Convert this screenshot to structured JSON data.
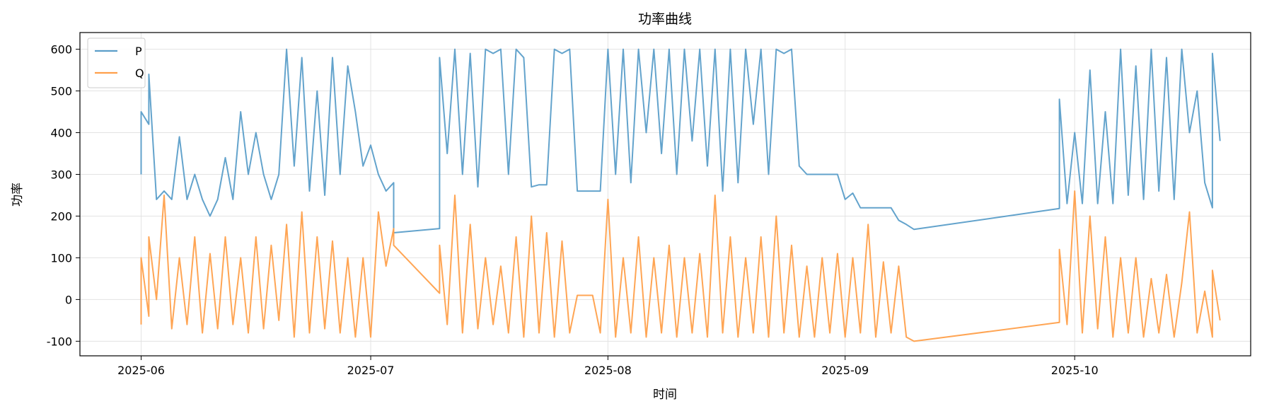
{
  "chart_data": {
    "type": "line",
    "title": "功率曲线",
    "xlabel": "时间",
    "ylabel": "功率",
    "xlim": [
      "2025-05-24",
      "2025-10-24"
    ],
    "ylim": [
      -135,
      640
    ],
    "x_ticks": [
      "2025-06",
      "2025-07",
      "2025-08",
      "2025-09",
      "2025-10"
    ],
    "y_ticks": [
      -100,
      0,
      100,
      200,
      300,
      400,
      500,
      600
    ],
    "grid": true,
    "legend_position": "top-left",
    "series": [
      {
        "name": "P",
        "color": "#5b9ec9",
        "points": [
          [
            "2025-06-01",
            300
          ],
          [
            "2025-06-01",
            450
          ],
          [
            "2025-06-02",
            420
          ],
          [
            "2025-06-02",
            540
          ],
          [
            "2025-06-03",
            240
          ],
          [
            "2025-06-04",
            260
          ],
          [
            "2025-06-05",
            240
          ],
          [
            "2025-06-06",
            390
          ],
          [
            "2025-06-07",
            240
          ],
          [
            "2025-06-08",
            300
          ],
          [
            "2025-06-09",
            240
          ],
          [
            "2025-06-10",
            200
          ],
          [
            "2025-06-11",
            240
          ],
          [
            "2025-06-12",
            340
          ],
          [
            "2025-06-13",
            240
          ],
          [
            "2025-06-14",
            450
          ],
          [
            "2025-06-15",
            300
          ],
          [
            "2025-06-16",
            400
          ],
          [
            "2025-06-17",
            300
          ],
          [
            "2025-06-18",
            240
          ],
          [
            "2025-06-19",
            300
          ],
          [
            "2025-06-20",
            600
          ],
          [
            "2025-06-21",
            320
          ],
          [
            "2025-06-22",
            580
          ],
          [
            "2025-06-23",
            260
          ],
          [
            "2025-06-24",
            500
          ],
          [
            "2025-06-25",
            250
          ],
          [
            "2025-06-26",
            580
          ],
          [
            "2025-06-27",
            300
          ],
          [
            "2025-06-28",
            560
          ],
          [
            "2025-06-29",
            450
          ],
          [
            "2025-06-30",
            320
          ],
          [
            "2025-07-01",
            370
          ],
          [
            "2025-07-02",
            300
          ],
          [
            "2025-07-03",
            260
          ],
          [
            "2025-07-04",
            280
          ],
          [
            "2025-07-04",
            160
          ],
          [
            "2025-07-10",
            170
          ],
          [
            "2025-07-10",
            580
          ],
          [
            "2025-07-11",
            350
          ],
          [
            "2025-07-12",
            600
          ],
          [
            "2025-07-13",
            300
          ],
          [
            "2025-07-14",
            590
          ],
          [
            "2025-07-15",
            270
          ],
          [
            "2025-07-16",
            600
          ],
          [
            "2025-07-17",
            590
          ],
          [
            "2025-07-18",
            600
          ],
          [
            "2025-07-19",
            300
          ],
          [
            "2025-07-20",
            600
          ],
          [
            "2025-07-21",
            580
          ],
          [
            "2025-07-22",
            270
          ],
          [
            "2025-07-23",
            275
          ],
          [
            "2025-07-24",
            275
          ],
          [
            "2025-07-25",
            600
          ],
          [
            "2025-07-26",
            590
          ],
          [
            "2025-07-27",
            600
          ],
          [
            "2025-07-28",
            260
          ],
          [
            "2025-07-29",
            260
          ],
          [
            "2025-07-30",
            260
          ],
          [
            "2025-07-31",
            260
          ],
          [
            "2025-08-01",
            600
          ],
          [
            "2025-08-02",
            300
          ],
          [
            "2025-08-03",
            600
          ],
          [
            "2025-08-04",
            280
          ],
          [
            "2025-08-05",
            600
          ],
          [
            "2025-08-06",
            400
          ],
          [
            "2025-08-07",
            600
          ],
          [
            "2025-08-08",
            350
          ],
          [
            "2025-08-09",
            600
          ],
          [
            "2025-08-10",
            300
          ],
          [
            "2025-08-11",
            600
          ],
          [
            "2025-08-12",
            380
          ],
          [
            "2025-08-13",
            600
          ],
          [
            "2025-08-14",
            320
          ],
          [
            "2025-08-15",
            600
          ],
          [
            "2025-08-16",
            260
          ],
          [
            "2025-08-17",
            600
          ],
          [
            "2025-08-18",
            280
          ],
          [
            "2025-08-19",
            600
          ],
          [
            "2025-08-20",
            420
          ],
          [
            "2025-08-21",
            600
          ],
          [
            "2025-08-22",
            300
          ],
          [
            "2025-08-23",
            600
          ],
          [
            "2025-08-24",
            590
          ],
          [
            "2025-08-25",
            600
          ],
          [
            "2025-08-26",
            320
          ],
          [
            "2025-08-27",
            300
          ],
          [
            "2025-08-28",
            300
          ],
          [
            "2025-08-29",
            300
          ],
          [
            "2025-08-30",
            300
          ],
          [
            "2025-08-31",
            300
          ],
          [
            "2025-09-01",
            240
          ],
          [
            "2025-09-02",
            255
          ],
          [
            "2025-09-03",
            220
          ],
          [
            "2025-09-04",
            220
          ],
          [
            "2025-09-05",
            220
          ],
          [
            "2025-09-06",
            220
          ],
          [
            "2025-09-07",
            220
          ],
          [
            "2025-09-08",
            190
          ],
          [
            "2025-09-09",
            180
          ],
          [
            "2025-09-10",
            168
          ],
          [
            "2025-09-29",
            218
          ],
          [
            "2025-09-29",
            480
          ],
          [
            "2025-09-30",
            230
          ],
          [
            "2025-10-01",
            400
          ],
          [
            "2025-10-02",
            230
          ],
          [
            "2025-10-03",
            550
          ],
          [
            "2025-10-04",
            230
          ],
          [
            "2025-10-05",
            450
          ],
          [
            "2025-10-06",
            230
          ],
          [
            "2025-10-07",
            600
          ],
          [
            "2025-10-08",
            250
          ],
          [
            "2025-10-09",
            560
          ],
          [
            "2025-10-10",
            240
          ],
          [
            "2025-10-11",
            600
          ],
          [
            "2025-10-12",
            260
          ],
          [
            "2025-10-13",
            580
          ],
          [
            "2025-10-14",
            240
          ],
          [
            "2025-10-15",
            600
          ],
          [
            "2025-10-16",
            400
          ],
          [
            "2025-10-17",
            500
          ],
          [
            "2025-10-18",
            280
          ],
          [
            "2025-10-19",
            220
          ],
          [
            "2025-10-19",
            590
          ],
          [
            "2025-10-20",
            380
          ]
        ]
      },
      {
        "name": "Q",
        "color": "#ffa04b",
        "points": [
          [
            "2025-06-01",
            -60
          ],
          [
            "2025-06-01",
            100
          ],
          [
            "2025-06-02",
            -40
          ],
          [
            "2025-06-02",
            150
          ],
          [
            "2025-06-03",
            0
          ],
          [
            "2025-06-04",
            250
          ],
          [
            "2025-06-05",
            -70
          ],
          [
            "2025-06-06",
            100
          ],
          [
            "2025-06-07",
            -60
          ],
          [
            "2025-06-08",
            150
          ],
          [
            "2025-06-09",
            -80
          ],
          [
            "2025-06-10",
            110
          ],
          [
            "2025-06-11",
            -70
          ],
          [
            "2025-06-12",
            150
          ],
          [
            "2025-06-13",
            -60
          ],
          [
            "2025-06-14",
            100
          ],
          [
            "2025-06-15",
            -80
          ],
          [
            "2025-06-16",
            150
          ],
          [
            "2025-06-17",
            -70
          ],
          [
            "2025-06-18",
            130
          ],
          [
            "2025-06-19",
            -50
          ],
          [
            "2025-06-20",
            180
          ],
          [
            "2025-06-21",
            -90
          ],
          [
            "2025-06-22",
            210
          ],
          [
            "2025-06-23",
            -80
          ],
          [
            "2025-06-24",
            150
          ],
          [
            "2025-06-25",
            -70
          ],
          [
            "2025-06-26",
            140
          ],
          [
            "2025-06-27",
            -80
          ],
          [
            "2025-06-28",
            100
          ],
          [
            "2025-06-29",
            -90
          ],
          [
            "2025-06-30",
            100
          ],
          [
            "2025-07-01",
            -90
          ],
          [
            "2025-07-02",
            210
          ],
          [
            "2025-07-03",
            80
          ],
          [
            "2025-07-04",
            170
          ],
          [
            "2025-07-04",
            130
          ],
          [
            "2025-07-10",
            15
          ],
          [
            "2025-07-10",
            130
          ],
          [
            "2025-07-11",
            -60
          ],
          [
            "2025-07-12",
            250
          ],
          [
            "2025-07-13",
            -80
          ],
          [
            "2025-07-14",
            180
          ],
          [
            "2025-07-15",
            -70
          ],
          [
            "2025-07-16",
            100
          ],
          [
            "2025-07-17",
            -60
          ],
          [
            "2025-07-18",
            80
          ],
          [
            "2025-07-19",
            -80
          ],
          [
            "2025-07-20",
            150
          ],
          [
            "2025-07-21",
            -90
          ],
          [
            "2025-07-22",
            200
          ],
          [
            "2025-07-23",
            -80
          ],
          [
            "2025-07-24",
            160
          ],
          [
            "2025-07-25",
            -90
          ],
          [
            "2025-07-26",
            140
          ],
          [
            "2025-07-27",
            -80
          ],
          [
            "2025-07-28",
            10
          ],
          [
            "2025-07-29",
            10
          ],
          [
            "2025-07-30",
            10
          ],
          [
            "2025-07-31",
            -80
          ],
          [
            "2025-08-01",
            240
          ],
          [
            "2025-08-02",
            -90
          ],
          [
            "2025-08-03",
            100
          ],
          [
            "2025-08-04",
            -80
          ],
          [
            "2025-08-05",
            150
          ],
          [
            "2025-08-06",
            -90
          ],
          [
            "2025-08-07",
            100
          ],
          [
            "2025-08-08",
            -80
          ],
          [
            "2025-08-09",
            130
          ],
          [
            "2025-08-10",
            -90
          ],
          [
            "2025-08-11",
            100
          ],
          [
            "2025-08-12",
            -80
          ],
          [
            "2025-08-13",
            110
          ],
          [
            "2025-08-14",
            -90
          ],
          [
            "2025-08-15",
            250
          ],
          [
            "2025-08-16",
            -80
          ],
          [
            "2025-08-17",
            150
          ],
          [
            "2025-08-18",
            -90
          ],
          [
            "2025-08-19",
            100
          ],
          [
            "2025-08-20",
            -80
          ],
          [
            "2025-08-21",
            150
          ],
          [
            "2025-08-22",
            -90
          ],
          [
            "2025-08-23",
            200
          ],
          [
            "2025-08-24",
            -80
          ],
          [
            "2025-08-25",
            130
          ],
          [
            "2025-08-26",
            -90
          ],
          [
            "2025-08-27",
            80
          ],
          [
            "2025-08-28",
            -90
          ],
          [
            "2025-08-29",
            100
          ],
          [
            "2025-08-30",
            -80
          ],
          [
            "2025-08-31",
            110
          ],
          [
            "2025-09-01",
            -90
          ],
          [
            "2025-09-02",
            100
          ],
          [
            "2025-09-03",
            -80
          ],
          [
            "2025-09-04",
            180
          ],
          [
            "2025-09-05",
            -90
          ],
          [
            "2025-09-06",
            90
          ],
          [
            "2025-09-07",
            -80
          ],
          [
            "2025-09-08",
            80
          ],
          [
            "2025-09-09",
            -90
          ],
          [
            "2025-09-10",
            -100
          ],
          [
            "2025-09-29",
            -55
          ],
          [
            "2025-09-29",
            120
          ],
          [
            "2025-09-30",
            -60
          ],
          [
            "2025-10-01",
            260
          ],
          [
            "2025-10-02",
            -80
          ],
          [
            "2025-10-03",
            200
          ],
          [
            "2025-10-04",
            -70
          ],
          [
            "2025-10-05",
            150
          ],
          [
            "2025-10-06",
            -90
          ],
          [
            "2025-10-07",
            100
          ],
          [
            "2025-10-08",
            -80
          ],
          [
            "2025-10-09",
            100
          ],
          [
            "2025-10-10",
            -90
          ],
          [
            "2025-10-11",
            50
          ],
          [
            "2025-10-12",
            -80
          ],
          [
            "2025-10-13",
            60
          ],
          [
            "2025-10-14",
            -90
          ],
          [
            "2025-10-15",
            40
          ],
          [
            "2025-10-16",
            210
          ],
          [
            "2025-10-17",
            -80
          ],
          [
            "2025-10-18",
            20
          ],
          [
            "2025-10-19",
            -90
          ],
          [
            "2025-10-19",
            70
          ],
          [
            "2025-10-20",
            -50
          ]
        ]
      }
    ]
  }
}
